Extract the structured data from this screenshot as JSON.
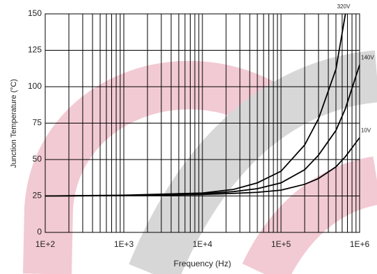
{
  "chart_data": {
    "type": "line",
    "x_label": "Frequency (Hz)",
    "y_label": "Junction Temperature (°C)",
    "log_x": true,
    "grid": true,
    "minor_grid": true,
    "x": [
      100,
      1000,
      10000,
      25000,
      50000,
      100000,
      200000,
      300000,
      500000,
      660000,
      1000000
    ],
    "series": [
      {
        "name": "320V",
        "color": "#000000",
        "values": [
          25,
          25.5,
          27,
          29.5,
          34,
          42,
          60,
          78,
          112,
          150,
          null
        ]
      },
      {
        "name": "140V",
        "color": "#000000",
        "values": [
          25,
          25.3,
          26.5,
          28,
          30,
          34,
          43,
          53,
          70,
          85,
          115
        ]
      },
      {
        "name": "10V",
        "color": "#000000",
        "values": [
          25,
          25.2,
          26,
          26.8,
          27.5,
          29,
          33,
          37,
          45,
          52,
          65
        ]
      }
    ],
    "xlim": [
      100,
      1000000
    ],
    "xticks": [
      {
        "value": 100,
        "label": "1E+2"
      },
      {
        "value": 1000,
        "label": "1E+3"
      },
      {
        "value": 10000,
        "label": "1E+4"
      },
      {
        "value": 100000,
        "label": "1E+5"
      },
      {
        "value": 1000000,
        "label": "1E+6"
      }
    ],
    "ylim": [
      0,
      150
    ],
    "yticks": [
      0,
      25,
      50,
      75,
      100,
      125,
      150
    ]
  }
}
